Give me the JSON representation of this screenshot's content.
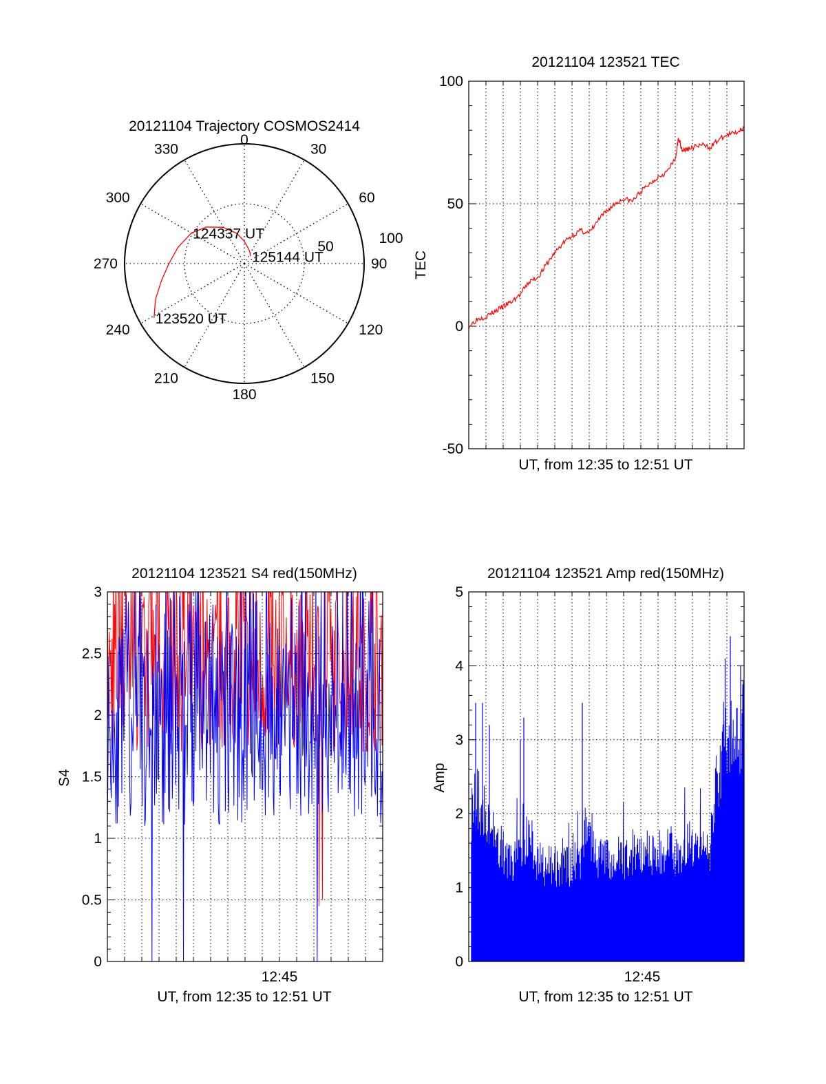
{
  "colors": {
    "red": "#ff0000",
    "blue": "#0000ff",
    "axis": "#000000",
    "grid": "#000000"
  },
  "chart_data": [
    {
      "type": "polar",
      "title": "20121104 Trajectory COSMOS2414",
      "angle_labels": [
        "0",
        "30",
        "60",
        "90",
        "120",
        "150",
        "180",
        "210",
        "240",
        "270",
        "300",
        "330"
      ],
      "radial_labels": [
        "50",
        "100"
      ],
      "radial_range": [
        0,
        100
      ],
      "grid": true,
      "series": [
        {
          "color": "red",
          "points": [
            [
              239,
              88
            ],
            [
              248,
              80
            ],
            [
              258,
              71
            ],
            [
              270,
              63
            ],
            [
              284,
              57
            ],
            [
              300,
              51
            ],
            [
              314,
              44
            ],
            [
              330,
              35
            ],
            [
              346,
              26
            ],
            [
              359,
              19
            ],
            [
              15,
              13
            ],
            [
              29,
              10
            ],
            [
              40,
              8
            ]
          ]
        }
      ],
      "annotations": [
        {
          "text": "123520 UT",
          "azimuth": 239,
          "zenith": 88
        },
        {
          "text": "124337 UT",
          "azimuth": 300,
          "zenith": 51
        },
        {
          "text": "125144 UT",
          "azimuth": 40,
          "zenith": 8
        }
      ]
    },
    {
      "type": "line",
      "title": "20121104 123521 TEC",
      "xlabel": "UT, from 12:35 to 12:51 UT",
      "ylabel": "TEC",
      "ylim": [
        -50,
        100
      ],
      "yticks": [
        "-50",
        "0",
        "50",
        "100"
      ],
      "xlim_minutes": [
        0,
        16
      ],
      "grid": true,
      "series": [
        {
          "color": "red",
          "x_minutes": [
            0,
            0.5,
            1,
            1.5,
            2,
            2.5,
            3,
            3.5,
            4,
            4.5,
            5,
            5.5,
            6,
            6.5,
            7,
            7.5,
            8,
            8.5,
            9,
            9.5,
            10,
            10.5,
            11,
            11.5,
            12,
            12.2,
            12.4,
            12.6,
            13,
            13.5,
            14,
            14.5,
            15,
            15.5,
            16
          ],
          "y": [
            0,
            3,
            4,
            6,
            8,
            10,
            13,
            18,
            20,
            25,
            30,
            34,
            37,
            39,
            38,
            43,
            47,
            50,
            52,
            51,
            55,
            58,
            61,
            63,
            68,
            77,
            72,
            72,
            73,
            74,
            73,
            76,
            78,
            79,
            81
          ]
        }
      ]
    },
    {
      "type": "line",
      "title": "20121104 123521 S4 red(150MHz)",
      "xlabel": "UT, from 12:35 to 12:51 UT",
      "ylabel": "S4",
      "ylim": [
        0,
        3
      ],
      "yticks": [
        "0",
        "0.5",
        "1",
        "1.5",
        "2",
        "2.5",
        "3"
      ],
      "xtick_label": "12:45",
      "xlim_minutes": [
        0,
        16
      ],
      "grid": true,
      "series": [
        {
          "color": "red",
          "noise_seed": 7,
          "range_minutes": [
            0,
            16
          ],
          "low": 1.7,
          "high": 3.0,
          "dips": [
            [
              12.3,
              0.45
            ],
            [
              12.5,
              0.5
            ]
          ]
        },
        {
          "color": "blue",
          "noise_seed": 11,
          "range_minutes": [
            0,
            16
          ],
          "low": 1.1,
          "high": 2.7,
          "dips": [
            [
              2.6,
              0.0
            ],
            [
              4.4,
              0.0
            ],
            [
              12.2,
              0.0
            ],
            [
              5.1,
              3.0
            ],
            [
              12.4,
              3.0
            ]
          ]
        }
      ]
    },
    {
      "type": "bar",
      "title": "20121104 123521 Amp red(150MHz)",
      "xlabel": "UT, from 12:35 to 12:51 UT",
      "ylabel": "Amp",
      "ylim": [
        0,
        5
      ],
      "yticks": [
        "0",
        "1",
        "2",
        "3",
        "4",
        "5"
      ],
      "xtick_label": "12:45",
      "xlim_minutes": [
        0,
        16
      ],
      "grid": true,
      "series": [
        {
          "color": "blue",
          "x_minutes": [
            0,
            0.5,
            1,
            1.5,
            2,
            2.5,
            3,
            3.5,
            4,
            4.5,
            5,
            5.5,
            6,
            6.5,
            7,
            7.5,
            8,
            8.5,
            9,
            9.5,
            10,
            10.5,
            11,
            11.5,
            12,
            12.5,
            13,
            13.5,
            14,
            14.5,
            15,
            15.5,
            16
          ],
          "envelope": [
            2.2,
            2.4,
            2.1,
            1.8,
            1.6,
            1.5,
            1.5,
            1.9,
            1.5,
            1.4,
            1.4,
            1.4,
            1.4,
            1.5,
            2.0,
            1.5,
            1.5,
            1.5,
            1.5,
            1.6,
            1.6,
            1.6,
            1.6,
            1.7,
            1.6,
            1.7,
            1.7,
            1.6,
            1.6,
            2.8,
            3.5,
            3.2,
            3.6
          ],
          "peaks": [
            [
              0.4,
              3.5
            ],
            [
              0.8,
              3.5
            ],
            [
              1.2,
              3.2
            ],
            [
              3.2,
              3.3
            ],
            [
              3.0,
              3.0
            ],
            [
              6.6,
              3.5
            ],
            [
              14.9,
              4.1
            ],
            [
              15.2,
              4.4
            ],
            [
              15.8,
              4.0
            ]
          ]
        }
      ]
    }
  ]
}
